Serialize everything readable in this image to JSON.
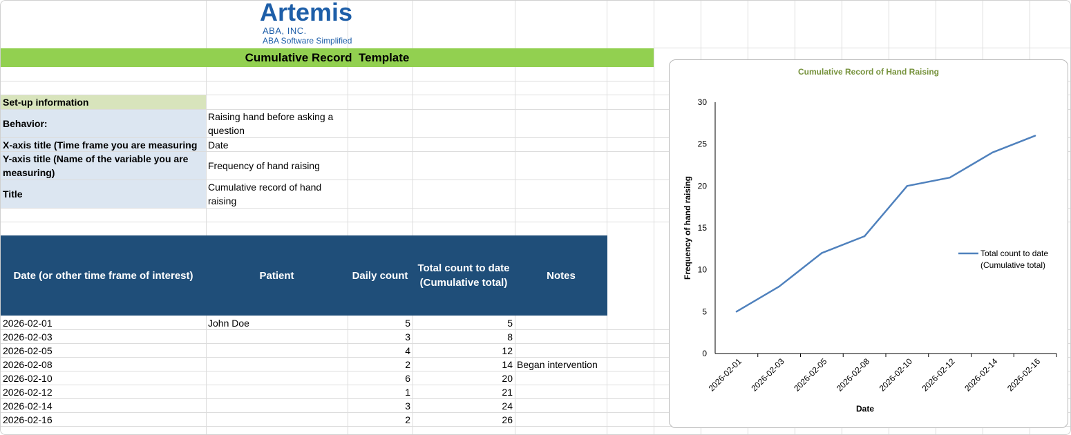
{
  "logo": {
    "word": "Artemis",
    "line1": "ABA, INC.",
    "line2": "ABA Software Simplified",
    "brand_color": "#1d5ea8"
  },
  "banner": {
    "title": "Cumulative Record  Template",
    "color": "#92d050"
  },
  "setup": {
    "heading": "Set-up information",
    "rows": [
      {
        "label": "Behavior:",
        "value": "Raising hand before asking a question"
      },
      {
        "label": "X-axis title (Time frame you are measuring",
        "value": "Date"
      },
      {
        "label": "Y-axis title (Name of the variable you are measuring)",
        "value": "Frequency of hand raising"
      },
      {
        "label": "Title",
        "value": "Cumulative record of hand raising"
      }
    ]
  },
  "table": {
    "header_color": "#1f4e79",
    "headers": [
      "Date (or other time frame of interest)",
      "Patient",
      "Daily count",
      "Total count to date (Cumulative total)",
      "Notes"
    ],
    "rows": [
      [
        "2026-02-01",
        "John Doe",
        "5",
        "5",
        ""
      ],
      [
        "2026-02-03",
        "",
        "3",
        "8",
        ""
      ],
      [
        "2026-02-05",
        "",
        "4",
        "12",
        ""
      ],
      [
        "2026-02-08",
        "",
        "2",
        "14",
        "Began intervention"
      ],
      [
        "2026-02-10",
        "",
        "6",
        "20",
        ""
      ],
      [
        "2026-02-12",
        "",
        "1",
        "21",
        ""
      ],
      [
        "2026-02-14",
        "",
        "3",
        "24",
        ""
      ],
      [
        "2026-02-16",
        "",
        "2",
        "26",
        ""
      ]
    ]
  },
  "chart_data": {
    "type": "line",
    "title": "Cumulative Record of Hand Raising",
    "xlabel": "Date",
    "ylabel": "Frequency of hand raising",
    "categories": [
      "2026-02-01",
      "2026-02-03",
      "2026-02-05",
      "2026-02-08",
      "2026-02-10",
      "2026-02-12",
      "2026-02-14",
      "2026-02-16"
    ],
    "series": [
      {
        "name": "Total count to date (Cumulative total)",
        "values": [
          5,
          8,
          12,
          14,
          20,
          21,
          24,
          26
        ],
        "color": "#4f81bd"
      }
    ],
    "ylim": [
      0,
      30
    ],
    "yticks": [
      0,
      5,
      10,
      15,
      20,
      25,
      30
    ],
    "grid": false,
    "legend": "right",
    "title_color": "#76923c"
  }
}
